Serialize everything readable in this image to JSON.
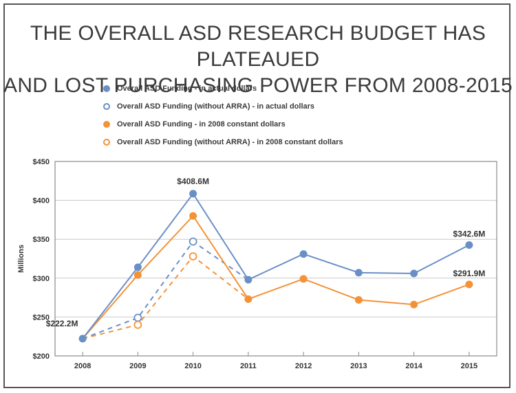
{
  "chart_data": {
    "type": "line",
    "title": "THE OVERALL ASD RESEARCH BUDGET HAS PLATEAUED AND LOST PURCHASING POWER FROM 2008-2015",
    "title_lines": [
      "THE OVERALL ASD RESEARCH BUDGET HAS PLATEAUED",
      "AND LOST PURCHASING POWER FROM 2008-2015"
    ],
    "xlabel": "",
    "ylabel": "Millions",
    "x": [
      "2008",
      "2009",
      "2010",
      "2011",
      "2012",
      "2013",
      "2014",
      "2015"
    ],
    "ylim": [
      200,
      450
    ],
    "yticks": [
      200,
      250,
      300,
      350,
      400,
      450
    ],
    "ytick_labels": [
      "$200",
      "$250",
      "$300",
      "$350",
      "$400",
      "$450"
    ],
    "grid": true,
    "legend_position": "top-left",
    "series": [
      {
        "name": "Overall ASD Funding - in actual dollars",
        "color": "#6a8fc7",
        "style": "solid",
        "marker": "filled",
        "values": [
          222.2,
          314,
          408.6,
          298,
          331,
          307,
          306,
          342.6
        ]
      },
      {
        "name": "Overall ASD Funding (without ARRA) - in actual dollars",
        "color": "#6a8fc7",
        "style": "dashed",
        "marker": "open",
        "values": [
          222.2,
          249,
          347,
          298,
          null,
          null,
          null,
          null
        ]
      },
      {
        "name": "Overall ASD Funding - in 2008 constant dollars",
        "color": "#f39237",
        "style": "solid",
        "marker": "filled",
        "values": [
          222.2,
          304,
          380,
          273,
          299,
          272,
          266,
          291.9
        ]
      },
      {
        "name": "Overall ASD Funding (without ARRA) - in 2008 constant dollars",
        "color": "#f39237",
        "style": "dashed",
        "marker": "open",
        "values": [
          222.2,
          240,
          328,
          273,
          null,
          null,
          null,
          null
        ]
      }
    ],
    "annotations": [
      {
        "text": "$222.2M",
        "x": "2008",
        "y": 222.2
      },
      {
        "text": "$408.6M",
        "x": "2010",
        "y": 408.6
      },
      {
        "text": "$342.6M",
        "x": "2015",
        "y": 342.6
      },
      {
        "text": "$291.9M",
        "x": "2015",
        "y": 291.9
      }
    ]
  }
}
